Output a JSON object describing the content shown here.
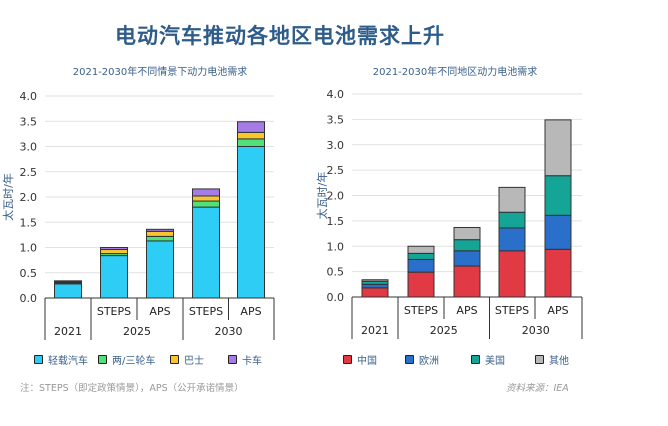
{
  "title": "电动汽车推动各地区电池需求上升",
  "note": "注：STEPS（即定政策情景），APS（公开承诺情景）",
  "source": "资料来源：IEA",
  "chart_data": [
    {
      "type": "bar",
      "stacked": true,
      "title": "2021-2030年不同情景下动力电池需求",
      "ylabel": "太瓦时/年",
      "ylim": [
        0,
        4.0
      ],
      "yticks": [
        "0.0",
        "0.5",
        "1.0",
        "1.5",
        "2.0",
        "2.5",
        "3.0",
        "3.5",
        "4.0"
      ],
      "grid": true,
      "legend": "bottom",
      "categories": [
        {
          "sub": "",
          "group": "2021"
        },
        {
          "sub": "STEPS",
          "group": "2025"
        },
        {
          "sub": "APS",
          "group": "2025"
        },
        {
          "sub": "STEPS",
          "group": "2030"
        },
        {
          "sub": "APS",
          "group": "2030"
        }
      ],
      "groups": [
        "2021",
        "2025",
        "2030"
      ],
      "series": [
        {
          "name": "轻载汽车",
          "color": "#2ecdf5",
          "values": [
            0.28,
            0.84,
            1.13,
            1.8,
            3.0
          ]
        },
        {
          "name": "两/三轮车",
          "color": "#4fe07a",
          "values": [
            0.02,
            0.04,
            0.09,
            0.12,
            0.15
          ]
        },
        {
          "name": "巴士",
          "color": "#f7c62f",
          "values": [
            0.02,
            0.08,
            0.1,
            0.1,
            0.13
          ]
        },
        {
          "name": "卡车",
          "color": "#a57be6",
          "values": [
            0.02,
            0.04,
            0.04,
            0.14,
            0.21
          ]
        }
      ]
    },
    {
      "type": "bar",
      "stacked": true,
      "title": "2021-2030年不同地区动力电池需求",
      "ylabel": "太瓦时/年",
      "ylim": [
        0,
        4.0
      ],
      "yticks": [
        "0.0",
        "0.5",
        "1.0",
        "1.5",
        "2.0",
        "2.5",
        "3.0",
        "3.5",
        "4.0"
      ],
      "grid": true,
      "legend": "bottom",
      "categories": [
        {
          "sub": "",
          "group": "2021"
        },
        {
          "sub": "STEPS",
          "group": "2025"
        },
        {
          "sub": "APS",
          "group": "2025"
        },
        {
          "sub": "STEPS",
          "group": "2030"
        },
        {
          "sub": "APS",
          "group": "2030"
        }
      ],
      "groups": [
        "2021",
        "2025",
        "2030"
      ],
      "series": [
        {
          "name": "中国",
          "color": "#e23a44",
          "values": [
            0.18,
            0.49,
            0.61,
            0.91,
            0.94
          ]
        },
        {
          "name": "欧洲",
          "color": "#2a6fc9",
          "values": [
            0.07,
            0.25,
            0.3,
            0.45,
            0.67
          ]
        },
        {
          "name": "美国",
          "color": "#14a596",
          "values": [
            0.06,
            0.12,
            0.22,
            0.31,
            0.78
          ]
        },
        {
          "name": "其他",
          "color": "#b8b8b8",
          "values": [
            0.03,
            0.14,
            0.24,
            0.49,
            1.1
          ]
        }
      ]
    }
  ]
}
